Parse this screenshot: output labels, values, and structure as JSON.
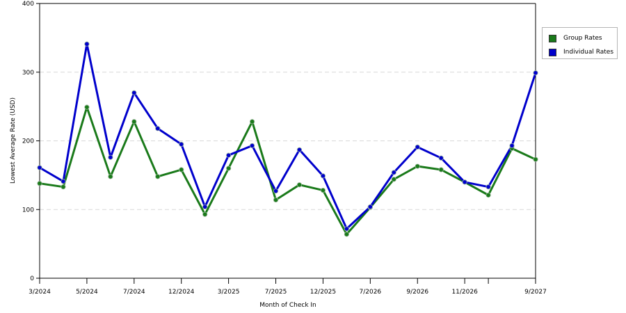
{
  "chart_data": {
    "type": "line",
    "xlabel": "Month of Check In",
    "ylabel": "Lowest Average Rate (USD)",
    "ylim": [
      0,
      400
    ],
    "yticks": [
      0,
      100,
      200,
      300,
      400
    ],
    "grid": "horizontal dashed",
    "legend_position": "right",
    "x_tick_labels": [
      "3/2024",
      "",
      "5/2024",
      "",
      "7/2024",
      "",
      "12/2024",
      "",
      "3/2025",
      "",
      "7/2025",
      "",
      "12/2025",
      "",
      "7/2026",
      "",
      "9/2026",
      "",
      "11/2026",
      "",
      "",
      "9/2027"
    ],
    "series": [
      {
        "name": "Group Rates",
        "color": "#1a7a1a",
        "values": [
          138,
          133,
          249,
          148,
          228,
          148,
          158,
          93,
          160,
          228,
          114,
          136,
          128,
          64,
          103,
          144,
          163,
          158,
          140,
          121,
          189,
          173
        ]
      },
      {
        "name": "Individual Rates",
        "color": "#0000cc",
        "values": [
          161,
          141,
          341,
          176,
          270,
          218,
          195,
          104,
          179,
          193,
          127,
          187,
          149,
          72,
          104,
          154,
          191,
          175,
          140,
          133,
          193,
          299
        ]
      }
    ]
  }
}
